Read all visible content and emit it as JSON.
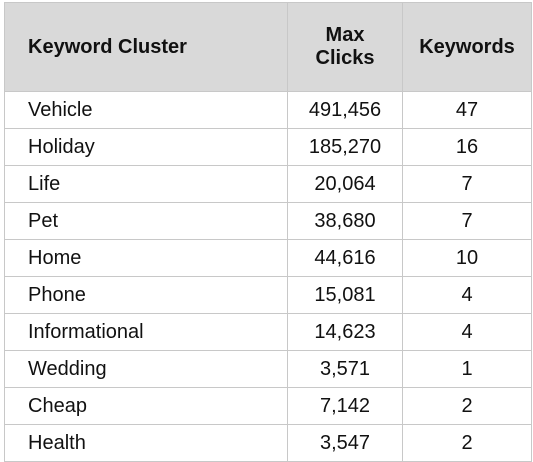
{
  "table": {
    "headers": {
      "cluster": "Keyword Cluster",
      "max_clicks_line1": "Max",
      "max_clicks_line2": "Clicks",
      "keywords": "Keywords"
    },
    "rows": [
      {
        "cluster": "Vehicle",
        "max_clicks": "491,456",
        "keywords": "47"
      },
      {
        "cluster": "Holiday",
        "max_clicks": "185,270",
        "keywords": "16"
      },
      {
        "cluster": "Life",
        "max_clicks": "20,064",
        "keywords": "7"
      },
      {
        "cluster": "Pet",
        "max_clicks": "38,680",
        "keywords": "7"
      },
      {
        "cluster": "Home",
        "max_clicks": "44,616",
        "keywords": "10"
      },
      {
        "cluster": "Phone",
        "max_clicks": "15,081",
        "keywords": "4"
      },
      {
        "cluster": "Informational",
        "max_clicks": "14,623",
        "keywords": "4"
      },
      {
        "cluster": "Wedding",
        "max_clicks": "3,571",
        "keywords": "1"
      },
      {
        "cluster": "Cheap",
        "max_clicks": "7,142",
        "keywords": "2"
      },
      {
        "cluster": "Health",
        "max_clicks": "3,547",
        "keywords": "2"
      }
    ]
  }
}
